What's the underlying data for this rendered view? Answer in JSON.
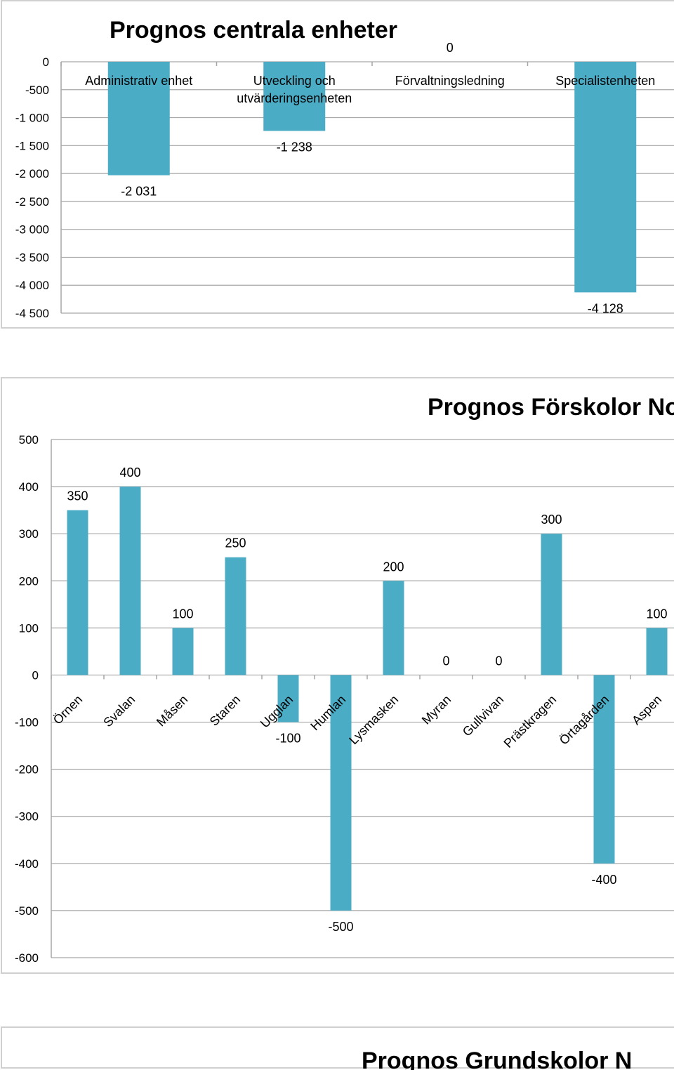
{
  "chart_data": [
    {
      "type": "bar",
      "title": "Prognos centrala enheter",
      "categories": [
        "Administrativ enhet",
        "Utveckling och utvärderingsenheten",
        "Förvaltningsledning",
        "Specialistenheten"
      ],
      "category_lines": [
        [
          "Administrativ enhet"
        ],
        [
          "Utveckling och",
          "utvärderingsenheten"
        ],
        [
          "Förvaltningsledning"
        ],
        [
          "Specialistenheten"
        ]
      ],
      "values": [
        -2031,
        -1238,
        0,
        -4128
      ],
      "value_labels": [
        "-2 031",
        "-1 238",
        "0",
        "-4 128"
      ],
      "ylim": [
        -4500,
        0
      ],
      "yticks": [
        0,
        -500,
        -1000,
        -1500,
        -2000,
        -2500,
        -3000,
        -3500,
        -4000,
        -4500
      ],
      "ytick_labels": [
        "0",
        "-500",
        "-1 000",
        "-1 500",
        "-2 000",
        "-2 500",
        "-3 000",
        "-3 500",
        "-4 000",
        "-4 500"
      ],
      "xlabel": "",
      "ylabel": "",
      "grid": true,
      "legend": "none",
      "color": "#4bacc6"
    },
    {
      "type": "bar",
      "title": "Prognos Förskolor Norr",
      "categories": [
        "Örnen",
        "Svalan",
        "Måsen",
        "Staren",
        "Ugglan",
        "Humlan",
        "Lysmasken",
        "Myran",
        "Gullvivan",
        "Prästkragen",
        "Örtagården",
        "Aspen"
      ],
      "values": [
        350,
        400,
        100,
        250,
        -100,
        -500,
        200,
        0,
        0,
        300,
        -400,
        100
      ],
      "value_labels": [
        "350",
        "400",
        "100",
        "250",
        "-100",
        "-500",
        "200",
        "0",
        "0",
        "300",
        "-400",
        "100"
      ],
      "ylim": [
        -600,
        500
      ],
      "yticks": [
        500,
        400,
        300,
        200,
        100,
        0,
        -100,
        -200,
        -300,
        -400,
        -500,
        -600
      ],
      "ytick_labels": [
        "500",
        "400",
        "300",
        "200",
        "100",
        "0",
        "-100",
        "-200",
        "-300",
        "-400",
        "-500",
        "-600"
      ],
      "xlabel": "",
      "ylabel": "",
      "grid": true,
      "legend": "none",
      "color": "#4bacc6"
    },
    {
      "type": "bar",
      "title": "Prognos Grundskolor N",
      "partial": true
    }
  ]
}
